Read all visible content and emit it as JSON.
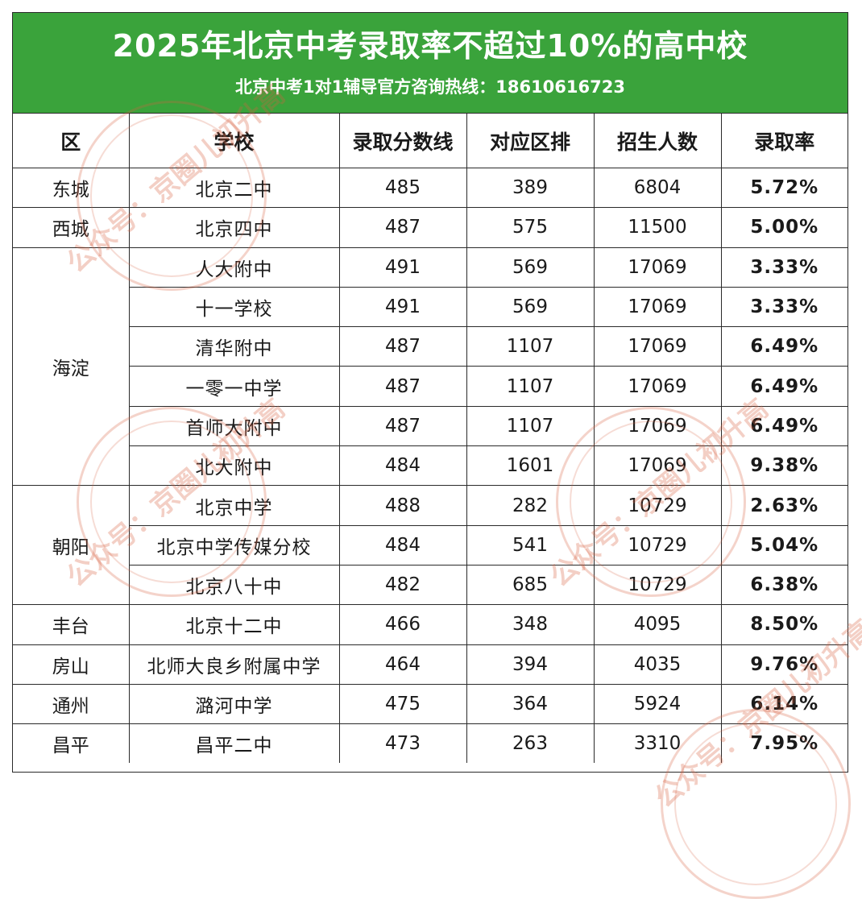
{
  "header": {
    "title": "2025年北京中考录取率不超过10%的高中校",
    "subtitle": "北京中考1对1辅导官方咨询热线：18610616723"
  },
  "table": {
    "columns": [
      "区",
      "学校",
      "录取分数线",
      "对应区排",
      "招生人数",
      "录取率"
    ],
    "groups": [
      {
        "district": "东城",
        "rows": [
          {
            "school": "北京二中",
            "score": "485",
            "rank": "389",
            "enroll": "6804",
            "rate": "5.72%"
          }
        ]
      },
      {
        "district": "西城",
        "rows": [
          {
            "school": "北京四中",
            "score": "487",
            "rank": "575",
            "enroll": "11500",
            "rate": "5.00%"
          }
        ]
      },
      {
        "district": "海淀",
        "rows": [
          {
            "school": "人大附中",
            "score": "491",
            "rank": "569",
            "enroll": "17069",
            "rate": "3.33%"
          },
          {
            "school": "十一学校",
            "score": "491",
            "rank": "569",
            "enroll": "17069",
            "rate": "3.33%"
          },
          {
            "school": "清华附中",
            "score": "487",
            "rank": "1107",
            "enroll": "17069",
            "rate": "6.49%"
          },
          {
            "school": "一零一中学",
            "score": "487",
            "rank": "1107",
            "enroll": "17069",
            "rate": "6.49%"
          },
          {
            "school": "首师大附中",
            "score": "487",
            "rank": "1107",
            "enroll": "17069",
            "rate": "6.49%"
          },
          {
            "school": "北大附中",
            "score": "484",
            "rank": "1601",
            "enroll": "17069",
            "rate": "9.38%"
          }
        ]
      },
      {
        "district": "朝阳",
        "rows": [
          {
            "school": "北京中学",
            "score": "488",
            "rank": "282",
            "enroll": "10729",
            "rate": "2.63%"
          },
          {
            "school": "北京中学传媒分校",
            "score": "484",
            "rank": "541",
            "enroll": "10729",
            "rate": "5.04%"
          },
          {
            "school": "北京八十中",
            "score": "482",
            "rank": "685",
            "enroll": "10729",
            "rate": "6.38%"
          }
        ]
      },
      {
        "district": "丰台",
        "rows": [
          {
            "school": "北京十二中",
            "score": "466",
            "rank": "348",
            "enroll": "4095",
            "rate": "8.50%"
          }
        ]
      },
      {
        "district": "房山",
        "rows": [
          {
            "school": "北师大良乡附属中学",
            "score": "464",
            "rank": "394",
            "enroll": "4035",
            "rate": "9.76%"
          }
        ]
      },
      {
        "district": "通州",
        "rows": [
          {
            "school": "潞河中学",
            "score": "475",
            "rank": "364",
            "enroll": "5924",
            "rate": "6.14%"
          }
        ]
      },
      {
        "district": "昌平",
        "rows": [
          {
            "school": "昌平二中",
            "score": "473",
            "rank": "263",
            "enroll": "3310",
            "rate": "7.95%"
          }
        ]
      }
    ]
  },
  "watermark": {
    "text": "公众号：京圈儿初升高",
    "color": "#d66040"
  },
  "colors": {
    "banner": "#3aa33b",
    "rate_text": "#d11f2a",
    "border": "#2a2a2a"
  }
}
